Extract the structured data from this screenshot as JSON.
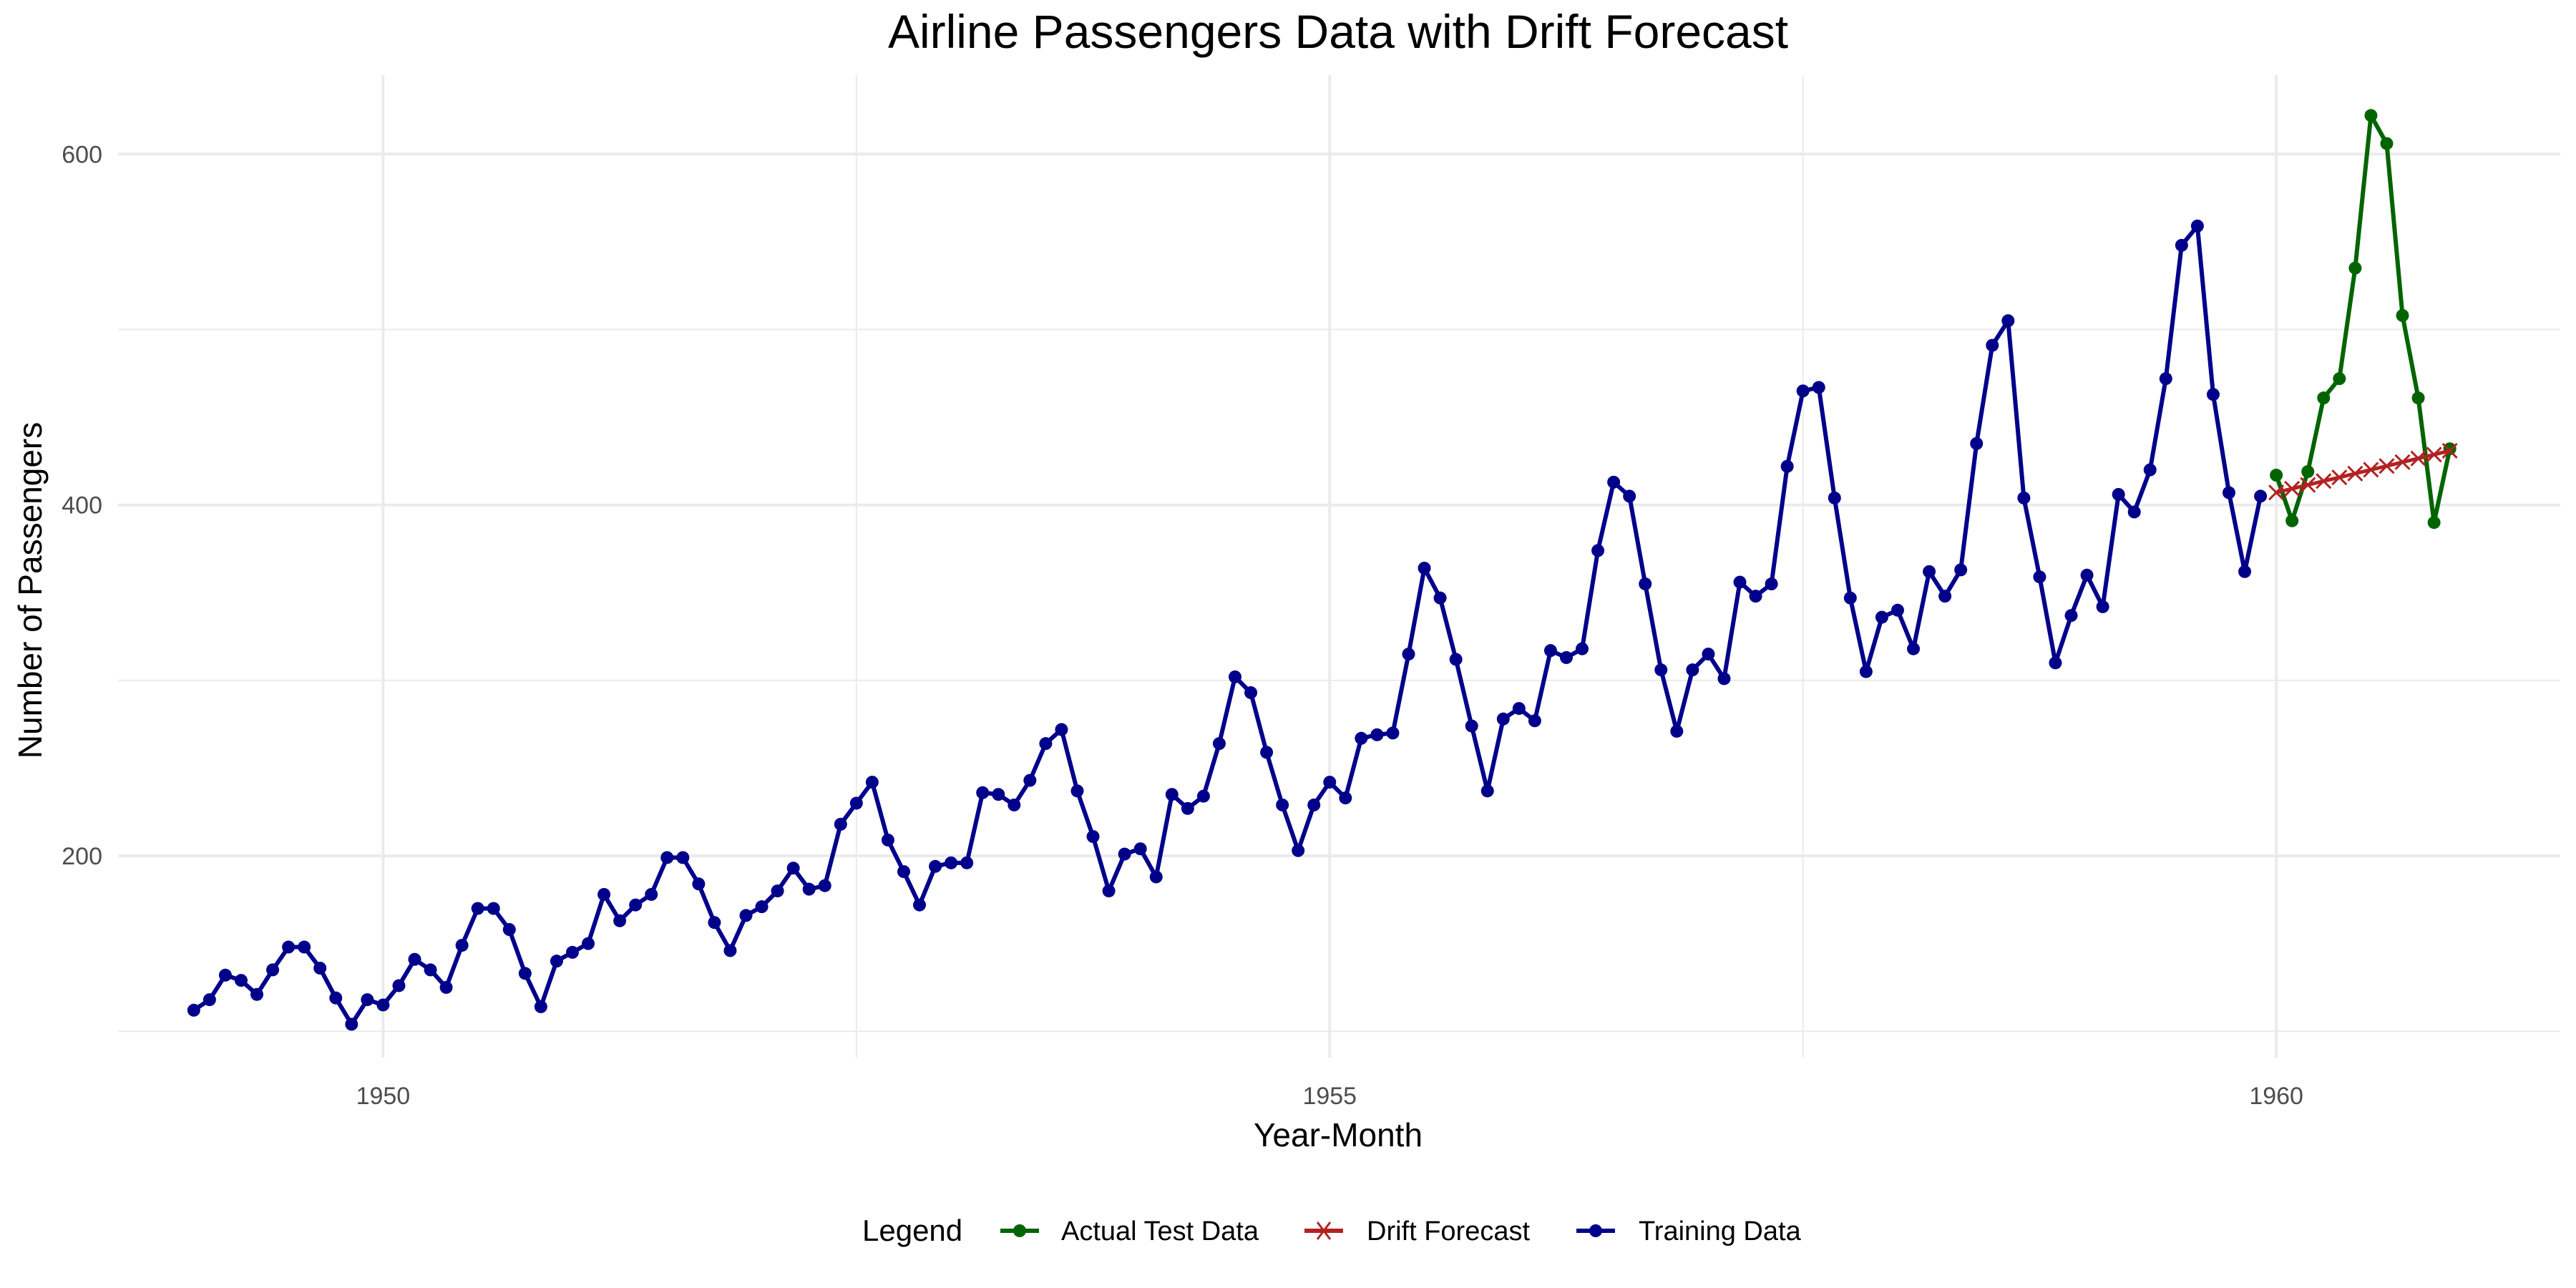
{
  "chart_data": {
    "type": "line",
    "title": "Airline Passengers Data with Drift Forecast",
    "xlabel": "Year-Month",
    "ylabel": "Number of Passengers",
    "xlim": [
      1948.6,
      1961.5
    ],
    "ylim": [
      85,
      645
    ],
    "x_ticks": [
      1950,
      1955,
      1960
    ],
    "y_ticks": [
      200,
      400,
      600
    ],
    "grid": true,
    "legend": {
      "title": "Legend",
      "position": "bottom"
    },
    "series": [
      {
        "name": "Training Data",
        "color": "#00008B",
        "marker": "circle",
        "start": 1949,
        "values": [
          112,
          118,
          132,
          129,
          121,
          135,
          148,
          148,
          136,
          119,
          104,
          118,
          115,
          126,
          141,
          135,
          125,
          149,
          170,
          170,
          158,
          133,
          114,
          140,
          145,
          150,
          178,
          163,
          172,
          178,
          199,
          199,
          184,
          162,
          146,
          166,
          171,
          180,
          193,
          181,
          183,
          218,
          230,
          242,
          209,
          191,
          172,
          194,
          196,
          196,
          236,
          235,
          229,
          243,
          264,
          272,
          237,
          211,
          180,
          201,
          204,
          188,
          235,
          227,
          234,
          264,
          302,
          293,
          259,
          229,
          203,
          229,
          242,
          233,
          267,
          269,
          270,
          315,
          364,
          347,
          312,
          274,
          237,
          278,
          284,
          277,
          317,
          313,
          318,
          374,
          413,
          405,
          355,
          306,
          271,
          306,
          315,
          301,
          356,
          348,
          355,
          422,
          465,
          467,
          404,
          347,
          305,
          336,
          340,
          318,
          362,
          348,
          363,
          435,
          491,
          505,
          404,
          359,
          310,
          337,
          360,
          342,
          406,
          396,
          420,
          472,
          548,
          559,
          463,
          407,
          362,
          405
        ]
      },
      {
        "name": "Actual Test Data",
        "color": "#006400",
        "marker": "circle",
        "start": 1960,
        "values": [
          417,
          391,
          419,
          461,
          472,
          535,
          622,
          606,
          508,
          461,
          390,
          432
        ]
      },
      {
        "name": "Drift Forecast",
        "color": "#B22222",
        "marker": "x",
        "start": 1960,
        "values": [
          407.1,
          409.3,
          411.4,
          413.6,
          415.7,
          417.9,
          420.1,
          422.2,
          424.4,
          426.5,
          428.7,
          430.9
        ]
      }
    ]
  },
  "colors": {
    "grid": "#ebebeb",
    "training": "#00008B",
    "test": "#006400",
    "forecast": "#B22222"
  }
}
